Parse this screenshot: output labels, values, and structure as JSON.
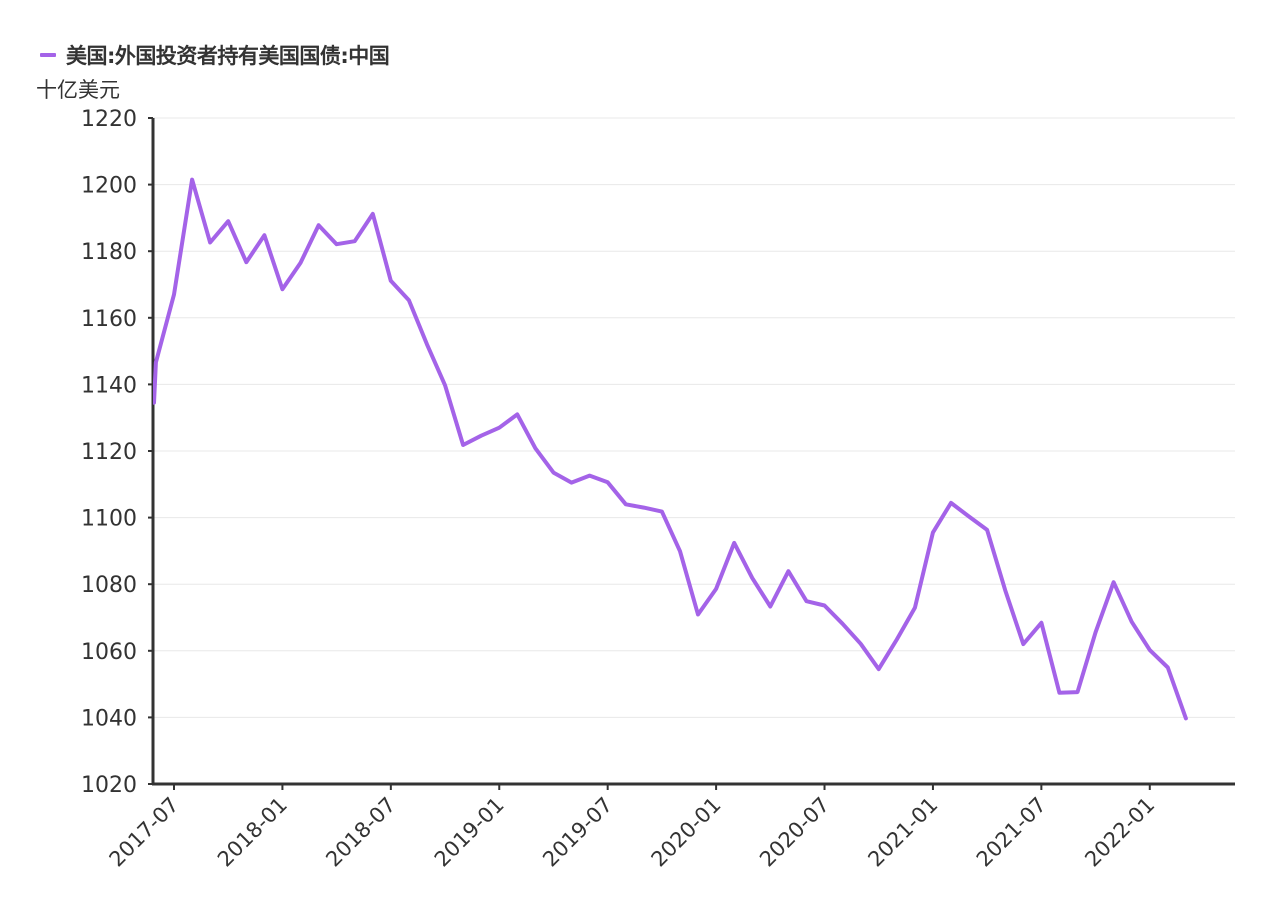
{
  "legend": {
    "label": "美国:外国投资者持有美国国债:中国",
    "color": "#a463e8"
  },
  "unit_label": "十亿美元",
  "colors": {
    "line": "#a463e8",
    "axis": "#333333",
    "grid": "#e8e8e8",
    "text": "#333333"
  },
  "chart_data": {
    "type": "line",
    "title": "美国:外国投资者持有美国国债:中国",
    "xlabel": "",
    "ylabel": "十亿美元",
    "ylim": [
      1020,
      1220
    ],
    "yticks": [
      1020,
      1040,
      1060,
      1080,
      1100,
      1120,
      1140,
      1160,
      1180,
      1200,
      1220
    ],
    "xtick_labels": [
      "2017-07",
      "2018-01",
      "2018-07",
      "2019-01",
      "2019-07",
      "2020-01",
      "2020-07",
      "2021-01",
      "2021-07",
      "2022-01"
    ],
    "grid": "horizontal",
    "legend_position": "top-left",
    "series": [
      {
        "name": "美国:外国投资者持有美国国债:中国",
        "x": [
          "2017-06",
          "2017-07",
          "2017-08",
          "2017-09",
          "2017-10",
          "2017-11",
          "2017-12",
          "2018-01",
          "2018-02",
          "2018-03",
          "2018-04",
          "2018-05",
          "2018-06",
          "2018-07",
          "2018-08",
          "2018-09",
          "2018-10",
          "2018-11",
          "2018-12",
          "2019-01",
          "2019-02",
          "2019-03",
          "2019-04",
          "2019-05",
          "2019-06",
          "2019-07",
          "2019-08",
          "2019-09",
          "2019-10",
          "2019-11",
          "2019-12",
          "2020-01",
          "2020-02",
          "2020-03",
          "2020-04",
          "2020-05",
          "2020-06",
          "2020-07",
          "2020-08",
          "2020-09",
          "2020-10",
          "2020-11",
          "2020-12",
          "2021-01",
          "2021-02",
          "2021-03",
          "2021-04",
          "2021-05",
          "2021-06",
          "2021-07",
          "2021-08",
          "2021-09",
          "2021-10",
          "2021-11",
          "2021-12",
          "2022-01",
          "2022-02",
          "2022-03"
        ],
        "values": [
          1146.6,
          1167.0,
          1201.5,
          1182.6,
          1189.0,
          1176.7,
          1184.8,
          1168.6,
          1176.5,
          1187.8,
          1182.1,
          1183.0,
          1191.2,
          1171.1,
          1165.3,
          1152.0,
          1139.7,
          1121.8,
          1124.6,
          1127.0,
          1131.0,
          1120.8,
          1113.5,
          1110.5,
          1112.6,
          1110.6,
          1104.0,
          1103.0,
          1101.8,
          1089.9,
          1070.9,
          1078.6,
          1092.4,
          1081.9,
          1073.3,
          1083.9,
          1074.9,
          1073.6,
          1068.1,
          1062.1,
          1054.5,
          1063.4,
          1072.9,
          1095.5,
          1104.4,
          1100.3,
          1096.3,
          1078.2,
          1062.0,
          1068.4,
          1047.4,
          1047.6,
          1065.6,
          1080.6,
          1068.7,
          1060.2,
          1055.0,
          1039.7
        ]
      }
    ]
  }
}
